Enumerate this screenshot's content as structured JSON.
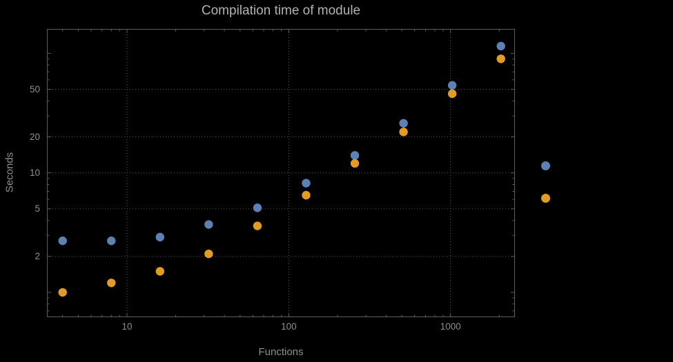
{
  "figure": {
    "background": "#000000"
  },
  "chart_data": {
    "type": "scatter",
    "title": "Compilation time of module",
    "xlabel": "Functions",
    "ylabel": "Seconds",
    "xscale": "log",
    "yscale": "log",
    "xlim": [
      3.2,
      2500
    ],
    "ylim": [
      0.62,
      160
    ],
    "grid": true,
    "x_ticks": [
      10,
      100,
      1000
    ],
    "x_tick_labels": [
      "10",
      "100",
      "1000"
    ],
    "y_ticks": [
      2,
      5,
      10,
      20,
      50
    ],
    "y_tick_labels": [
      "2",
      "5",
      "10",
      "20",
      "50"
    ],
    "frame_color": "#5e5e5e",
    "grid_color": "#565656",
    "text_color": "#8f8f8f",
    "title_color": "#b2b2b2",
    "series": [
      {
        "name": "series-1-blue",
        "color": "#5e81b5",
        "x": [
          4,
          8,
          16,
          32,
          64,
          128,
          256,
          512,
          1024,
          2048
        ],
        "y": [
          2.7,
          2.7,
          2.9,
          3.7,
          5.1,
          8.2,
          14,
          26,
          54,
          115
        ]
      },
      {
        "name": "series-2-orange",
        "color": "#e19c24",
        "x": [
          4,
          8,
          16,
          32,
          64,
          128,
          256,
          512,
          1024,
          2048
        ],
        "y": [
          1.0,
          1.2,
          1.5,
          2.1,
          3.6,
          6.5,
          12,
          22,
          46,
          90
        ]
      }
    ],
    "legend": {
      "position": "right",
      "markers": [
        {
          "series": "series-1-blue",
          "color": "#5e81b5"
        },
        {
          "series": "series-2-orange",
          "color": "#e19c24"
        }
      ]
    }
  }
}
